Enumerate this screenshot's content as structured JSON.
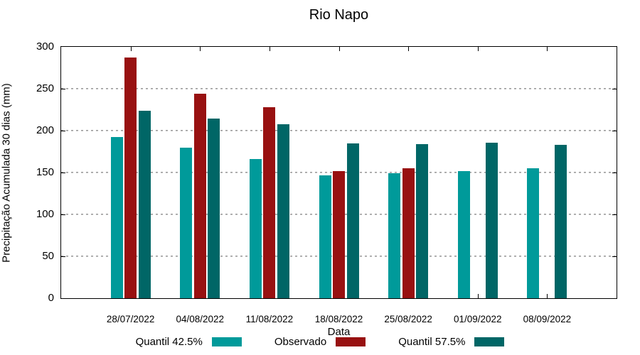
{
  "chart_data": {
    "type": "bar",
    "title": "Rio Napo",
    "xlabel": "Data",
    "ylabel": "Precipitação Acumulada 30 dias (mm)",
    "ylim": [
      0,
      300
    ],
    "yticks": [
      0,
      50,
      100,
      150,
      200,
      250,
      300
    ],
    "grid": "horizontal dotted gridlines at 50..250, full box border, inward ticks",
    "legend_position": "bottom, swatch after label",
    "categories": [
      "28/07/2022",
      "04/08/2022",
      "11/08/2022",
      "18/08/2022",
      "25/08/2022",
      "01/09/2022",
      "08/09/2022"
    ],
    "series": [
      {
        "name": "Quantil 42.5%",
        "color": "#009A9A",
        "values": [
          192,
          180,
          166,
          147,
          149,
          152,
          155
        ]
      },
      {
        "name": "Observado",
        "color": "#981111",
        "values": [
          287,
          244,
          228,
          152,
          155,
          null,
          null
        ]
      },
      {
        "name": "Quantil 57.5%",
        "color": "#006666",
        "values": [
          224,
          214,
          208,
          185,
          184,
          186,
          183
        ]
      }
    ]
  },
  "colors": {
    "axis": "#000000",
    "grid": "#9b9b9b",
    "background": "#ffffff"
  }
}
